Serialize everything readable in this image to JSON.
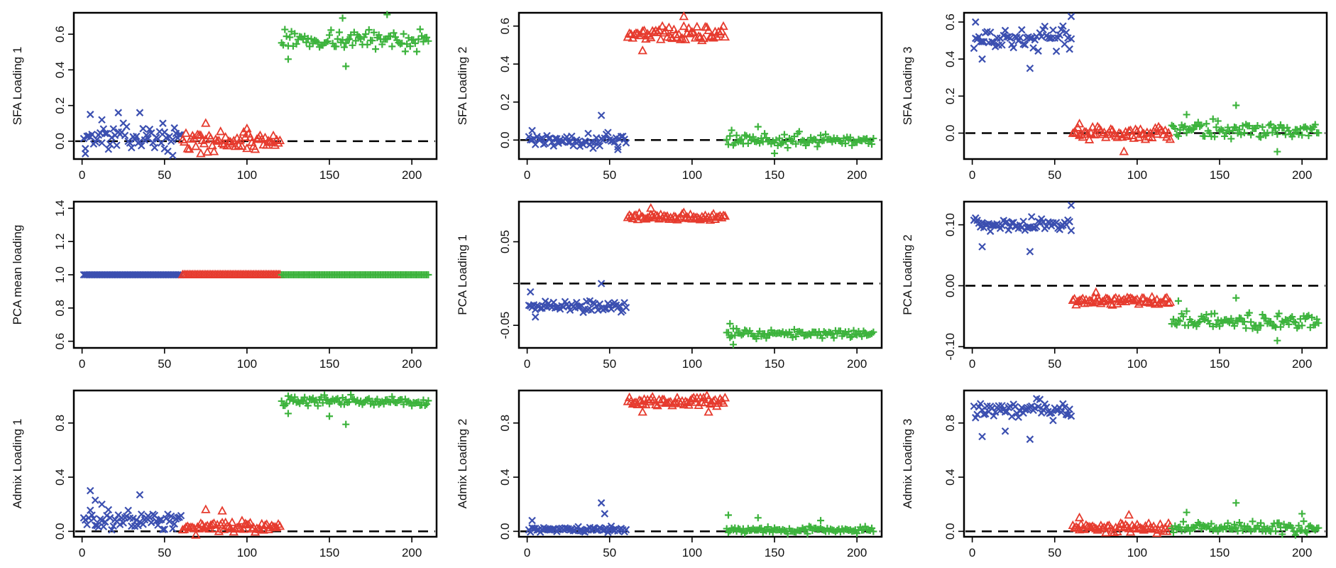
{
  "chart_data": [
    {
      "id": "sfa1",
      "type": "scatter",
      "ylabel": "SFA Loading 1",
      "xlim": [
        -5,
        215
      ],
      "ylim": [
        -0.1,
        0.72
      ],
      "xticks": [
        0,
        50,
        100,
        150,
        200
      ],
      "yticks": [
        0.0,
        0.2,
        0.4,
        0.6
      ],
      "refline": 0,
      "groups": [
        {
          "marker": "x",
          "color": "#3b4fb0",
          "x": [
            1,
            60
          ],
          "ymean": 0.02,
          "spread": 0.06,
          "extra": [
            [
              5,
              0.15
            ],
            [
              12,
              0.12
            ],
            [
              22,
              0.16
            ],
            [
              35,
              0.16
            ],
            [
              50,
              0.05
            ],
            [
              55,
              -0.08
            ],
            [
              2,
              -0.07
            ]
          ]
        },
        {
          "marker": "triangle",
          "color": "#e63b2e",
          "x": [
            61,
            120
          ],
          "ymean": 0.0,
          "spread": 0.045,
          "extra": [
            [
              75,
              0.1
            ],
            [
              72,
              -0.07
            ],
            [
              100,
              0.07
            ]
          ]
        },
        {
          "marker": "plus",
          "color": "#3cb33c",
          "x": [
            121,
            210
          ],
          "ymean": 0.57,
          "spread": 0.05,
          "extra": [
            [
              185,
              0.71
            ],
            [
              158,
              0.69
            ],
            [
              160,
              0.42
            ],
            [
              125,
              0.46
            ]
          ]
        }
      ]
    },
    {
      "id": "sfa2",
      "type": "scatter",
      "ylabel": "SFA Loading 2",
      "xlim": [
        -5,
        215
      ],
      "ylim": [
        -0.1,
        0.67
      ],
      "xticks": [
        0,
        50,
        100,
        150,
        200
      ],
      "yticks": [
        0.0,
        0.2,
        0.4,
        0.6
      ],
      "refline": 0,
      "groups": [
        {
          "marker": "x",
          "color": "#3b4fb0",
          "x": [
            1,
            60
          ],
          "ymean": 0.0,
          "spread": 0.035,
          "extra": [
            [
              45,
              0.13
            ],
            [
              55,
              -0.05
            ],
            [
              3,
              0.05
            ]
          ]
        },
        {
          "marker": "triangle",
          "color": "#e63b2e",
          "x": [
            61,
            120
          ],
          "ymean": 0.56,
          "spread": 0.04,
          "extra": [
            [
              95,
              0.65
            ],
            [
              70,
              0.47
            ]
          ]
        },
        {
          "marker": "plus",
          "color": "#3cb33c",
          "x": [
            121,
            210
          ],
          "ymean": 0.0,
          "spread": 0.035,
          "extra": [
            [
              140,
              0.07
            ],
            [
              150,
              -0.07
            ]
          ]
        }
      ]
    },
    {
      "id": "sfa3",
      "type": "scatter",
      "ylabel": "SFA Loading 3",
      "xlim": [
        -5,
        215
      ],
      "ylim": [
        -0.14,
        0.65
      ],
      "xticks": [
        0,
        50,
        100,
        150,
        200
      ],
      "yticks": [
        0.0,
        0.2,
        0.4,
        0.6
      ],
      "refline": 0,
      "groups": [
        {
          "marker": "x",
          "color": "#3b4fb0",
          "x": [
            1,
            60
          ],
          "ymean": 0.51,
          "spread": 0.05,
          "extra": [
            [
              2,
              0.6
            ],
            [
              60,
              0.63
            ],
            [
              35,
              0.35
            ],
            [
              6,
              0.4
            ]
          ]
        },
        {
          "marker": "triangle",
          "color": "#e63b2e",
          "x": [
            61,
            120
          ],
          "ymean": 0.0,
          "spread": 0.035,
          "extra": [
            [
              92,
              -0.1
            ],
            [
              65,
              0.05
            ]
          ]
        },
        {
          "marker": "plus",
          "color": "#3cb33c",
          "x": [
            121,
            210
          ],
          "ymean": 0.02,
          "spread": 0.045,
          "extra": [
            [
              160,
              0.15
            ],
            [
              185,
              -0.1
            ],
            [
              130,
              0.1
            ]
          ]
        }
      ]
    },
    {
      "id": "pcamean",
      "type": "scatter",
      "ylabel": "PCA mean loading",
      "xlim": [
        -5,
        215
      ],
      "ylim": [
        0.56,
        1.44
      ],
      "xticks": [
        0,
        50,
        100,
        150,
        200
      ],
      "yticks": [
        0.6,
        0.8,
        1.0,
        1.2,
        1.4
      ],
      "refline": null,
      "groups": [
        {
          "marker": "x",
          "color": "#3b4fb0",
          "x": [
            1,
            60
          ],
          "ymean": 1.0,
          "spread": 0.0,
          "extra": []
        },
        {
          "marker": "triangle",
          "color": "#e63b2e",
          "x": [
            61,
            120
          ],
          "ymean": 1.0,
          "spread": 0.0,
          "extra": []
        },
        {
          "marker": "plus",
          "color": "#3cb33c",
          "x": [
            121,
            210
          ],
          "ymean": 1.0,
          "spread": 0.0,
          "extra": []
        }
      ]
    },
    {
      "id": "pca1",
      "type": "scatter",
      "ylabel": "PCA Loading 1",
      "xlim": [
        -5,
        215
      ],
      "ylim": [
        -0.077,
        0.098
      ],
      "xticks": [
        0,
        50,
        100,
        150,
        200
      ],
      "yticks": [
        -0.05,
        0.0,
        0.05
      ],
      "ytickLabels": [
        "-0.05",
        "",
        "0.05"
      ],
      "refline": 0,
      "groups": [
        {
          "marker": "x",
          "color": "#3b4fb0",
          "x": [
            1,
            60
          ],
          "ymean": -0.027,
          "spread": 0.006,
          "extra": [
            [
              45,
              0.0
            ],
            [
              2,
              -0.01
            ],
            [
              5,
              -0.04
            ]
          ]
        },
        {
          "marker": "triangle",
          "color": "#e63b2e",
          "x": [
            61,
            120
          ],
          "ymean": 0.08,
          "spread": 0.004,
          "extra": [
            [
              75,
              0.09
            ]
          ]
        },
        {
          "marker": "plus",
          "color": "#3cb33c",
          "x": [
            121,
            210
          ],
          "ymean": -0.06,
          "spread": 0.005,
          "extra": [
            [
              125,
              -0.073
            ],
            [
              123,
              -0.048
            ]
          ]
        }
      ]
    },
    {
      "id": "pca2",
      "type": "scatter",
      "ylabel": "PCA Loading 2",
      "xlim": [
        -5,
        215
      ],
      "ylim": [
        -0.102,
        0.138
      ],
      "xticks": [
        0,
        50,
        100,
        150,
        200
      ],
      "yticks": [
        -0.1,
        0.0,
        0.1
      ],
      "ytickLabels": [
        "-0.10",
        "0.00",
        "0.10"
      ],
      "refline": 0,
      "groups": [
        {
          "marker": "x",
          "color": "#3b4fb0",
          "x": [
            1,
            60
          ],
          "ymean": 0.1,
          "spread": 0.01,
          "extra": [
            [
              60,
              0.132
            ],
            [
              35,
              0.056
            ],
            [
              6,
              0.064
            ]
          ]
        },
        {
          "marker": "triangle",
          "color": "#e63b2e",
          "x": [
            61,
            120
          ],
          "ymean": -0.025,
          "spread": 0.006,
          "extra": [
            [
              75,
              -0.011
            ]
          ]
        },
        {
          "marker": "plus",
          "color": "#3cb33c",
          "x": [
            121,
            210
          ],
          "ymean": -0.058,
          "spread": 0.012,
          "extra": [
            [
              185,
              -0.09
            ],
            [
              125,
              -0.025
            ],
            [
              160,
              -0.02
            ]
          ]
        }
      ]
    },
    {
      "id": "admix1",
      "type": "scatter",
      "ylabel": "Admix Loading 1",
      "xlim": [
        -5,
        215
      ],
      "ylim": [
        -0.04,
        1.04
      ],
      "xticks": [
        0,
        50,
        100,
        150,
        200
      ],
      "yticks": [
        0.0,
        0.4,
        0.8
      ],
      "refline": 0,
      "groups": [
        {
          "marker": "x",
          "color": "#3b4fb0",
          "x": [
            1,
            60
          ],
          "ymean": 0.08,
          "spread": 0.07,
          "extra": [
            [
              5,
              0.3
            ],
            [
              8,
              0.23
            ],
            [
              35,
              0.27
            ],
            [
              12,
              0.2
            ]
          ]
        },
        {
          "marker": "triangle",
          "color": "#e63b2e",
          "x": [
            61,
            120
          ],
          "ymean": 0.03,
          "spread": 0.04,
          "extra": [
            [
              75,
              0.16
            ],
            [
              85,
              0.15
            ]
          ]
        },
        {
          "marker": "plus",
          "color": "#3cb33c",
          "x": [
            121,
            210
          ],
          "ymean": 0.96,
          "spread": 0.035,
          "extra": [
            [
              160,
              0.79
            ],
            [
              125,
              0.87
            ],
            [
              150,
              0.85
            ]
          ]
        }
      ]
    },
    {
      "id": "admix2",
      "type": "scatter",
      "ylabel": "Admix Loading 2",
      "xlim": [
        -5,
        215
      ],
      "ylim": [
        -0.04,
        1.04
      ],
      "xticks": [
        0,
        50,
        100,
        150,
        200
      ],
      "yticks": [
        0.0,
        0.4,
        0.8
      ],
      "refline": 0,
      "groups": [
        {
          "marker": "x",
          "color": "#3b4fb0",
          "x": [
            1,
            60
          ],
          "ymean": 0.015,
          "spread": 0.02,
          "extra": [
            [
              45,
              0.21
            ],
            [
              47,
              0.13
            ],
            [
              3,
              0.08
            ]
          ]
        },
        {
          "marker": "triangle",
          "color": "#e63b2e",
          "x": [
            61,
            120
          ],
          "ymean": 0.96,
          "spread": 0.035,
          "extra": [
            [
              70,
              0.88
            ],
            [
              110,
              0.88
            ]
          ]
        },
        {
          "marker": "plus",
          "color": "#3cb33c",
          "x": [
            121,
            210
          ],
          "ymean": 0.01,
          "spread": 0.02,
          "extra": [
            [
              122,
              0.12
            ],
            [
              140,
              0.1
            ],
            [
              178,
              0.08
            ]
          ]
        }
      ]
    },
    {
      "id": "admix3",
      "type": "scatter",
      "ylabel": "Admix Loading 3",
      "xlim": [
        -5,
        215
      ],
      "ylim": [
        -0.04,
        1.04
      ],
      "xticks": [
        0,
        50,
        100,
        150,
        200
      ],
      "yticks": [
        0.0,
        0.4,
        0.8
      ],
      "refline": 0,
      "groups": [
        {
          "marker": "x",
          "color": "#3b4fb0",
          "x": [
            1,
            60
          ],
          "ymean": 0.9,
          "spread": 0.06,
          "extra": [
            [
              6,
              0.7
            ],
            [
              35,
              0.68
            ],
            [
              20,
              0.74
            ]
          ]
        },
        {
          "marker": "triangle",
          "color": "#e63b2e",
          "x": [
            61,
            120
          ],
          "ymean": 0.03,
          "spread": 0.035,
          "extra": [
            [
              95,
              0.12
            ],
            [
              65,
              0.1
            ]
          ]
        },
        {
          "marker": "plus",
          "color": "#3cb33c",
          "x": [
            121,
            210
          ],
          "ymean": 0.03,
          "spread": 0.04,
          "extra": [
            [
              160,
              0.21
            ],
            [
              130,
              0.14
            ],
            [
              200,
              0.13
            ]
          ]
        }
      ]
    }
  ]
}
